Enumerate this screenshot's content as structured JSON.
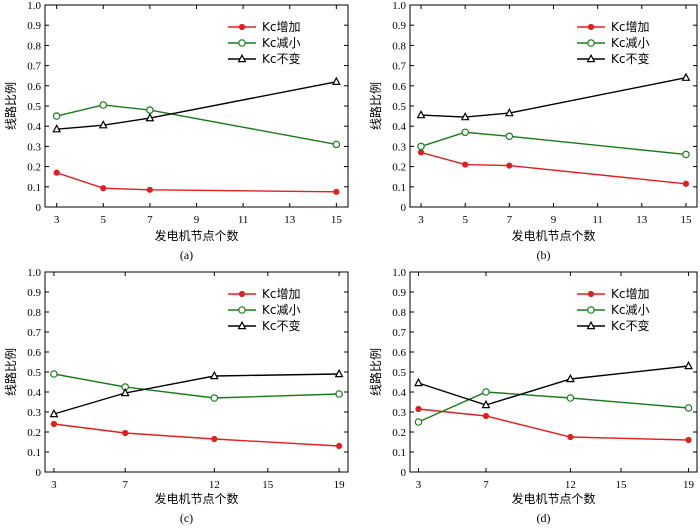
{
  "chart_data": [
    {
      "panel_label": "(a)",
      "type": "line",
      "xlabel": "发电机节点个数",
      "ylabel": "线路比例",
      "xlim": [
        2.5,
        15.5
      ],
      "xticks": [
        3,
        5,
        7,
        9,
        11,
        13,
        15
      ],
      "ylim": [
        0,
        1.0
      ],
      "yticks": [
        "0",
        "0.1",
        "0.2",
        "0.3",
        "0.4",
        "0.5",
        "0.6",
        "0.7",
        "0.8",
        "0.9",
        "1.0"
      ],
      "legend_position": "top-right",
      "x": [
        3,
        5,
        7,
        15
      ],
      "series": [
        {
          "name": "Kc增加",
          "color": "#e02020",
          "marker": "dot",
          "values": [
            0.17,
            0.093,
            0.085,
            0.075
          ]
        },
        {
          "name": "Kc减小",
          "color": "#1a7a1a",
          "marker": "circle",
          "values": [
            0.45,
            0.505,
            0.48,
            0.31
          ]
        },
        {
          "name": "Kc不变",
          "color": "#000000",
          "marker": "triangle",
          "values": [
            0.385,
            0.405,
            0.44,
            0.62
          ]
        }
      ]
    },
    {
      "panel_label": "(b)",
      "type": "line",
      "xlabel": "发电机节点个数",
      "ylabel": "线路比例",
      "xlim": [
        2.5,
        15.5
      ],
      "xticks": [
        3,
        5,
        7,
        9,
        11,
        13,
        15
      ],
      "ylim": [
        0,
        1.0
      ],
      "yticks": [
        "0",
        "0.1",
        "0.2",
        "0.3",
        "0.4",
        "0.5",
        "0.6",
        "0.7",
        "0.8",
        "0.9",
        "1.0"
      ],
      "legend_position": "top-right",
      "x": [
        3,
        5,
        7,
        15
      ],
      "series": [
        {
          "name": "Kc增加",
          "color": "#e02020",
          "marker": "dot",
          "values": [
            0.27,
            0.21,
            0.205,
            0.115
          ]
        },
        {
          "name": "Kc减小",
          "color": "#1a7a1a",
          "marker": "circle",
          "values": [
            0.3,
            0.37,
            0.35,
            0.26
          ]
        },
        {
          "name": "Kc不变",
          "color": "#000000",
          "marker": "triangle",
          "values": [
            0.455,
            0.445,
            0.465,
            0.64
          ]
        }
      ]
    },
    {
      "panel_label": "(c)",
      "type": "line",
      "xlabel": "发电机节点个数",
      "ylabel": "线路比例",
      "xlim": [
        2.5,
        19.5
      ],
      "xticks": [
        3,
        7,
        12,
        15,
        19
      ],
      "ylim": [
        0,
        1.0
      ],
      "yticks": [
        "0",
        "0.1",
        "0.2",
        "0.3",
        "0.4",
        "0.5",
        "0.6",
        "0.7",
        "0.8",
        "0.9",
        "1.0"
      ],
      "legend_position": "top-right",
      "x": [
        3,
        7,
        12,
        19
      ],
      "series": [
        {
          "name": "Kc增加",
          "color": "#e02020",
          "marker": "dot",
          "values": [
            0.24,
            0.195,
            0.165,
            0.13
          ]
        },
        {
          "name": "Kc减小",
          "color": "#1a7a1a",
          "marker": "circle",
          "values": [
            0.49,
            0.425,
            0.37,
            0.39
          ]
        },
        {
          "name": "Kc不变",
          "color": "#000000",
          "marker": "triangle",
          "values": [
            0.29,
            0.395,
            0.48,
            0.49
          ]
        }
      ]
    },
    {
      "panel_label": "(d)",
      "type": "line",
      "xlabel": "发电机节点个数",
      "ylabel": "线路比例",
      "xlim": [
        2.5,
        19.5
      ],
      "xticks": [
        3,
        7,
        12,
        15,
        19
      ],
      "ylim": [
        0,
        1.0
      ],
      "yticks": [
        "0",
        "0.1",
        "0.2",
        "0.3",
        "0.4",
        "0.5",
        "0.6",
        "0.7",
        "0.8",
        "0.9",
        "1.0"
      ],
      "legend_position": "top-right",
      "x": [
        3,
        7,
        12,
        19
      ],
      "series": [
        {
          "name": "Kc增加",
          "color": "#e02020",
          "marker": "dot",
          "values": [
            0.315,
            0.28,
            0.175,
            0.16
          ]
        },
        {
          "name": "Kc减小",
          "color": "#1a7a1a",
          "marker": "circle",
          "values": [
            0.25,
            0.4,
            0.37,
            0.32
          ]
        },
        {
          "name": "Kc不变",
          "color": "#000000",
          "marker": "triangle",
          "values": [
            0.445,
            0.335,
            0.465,
            0.53
          ]
        }
      ]
    }
  ]
}
